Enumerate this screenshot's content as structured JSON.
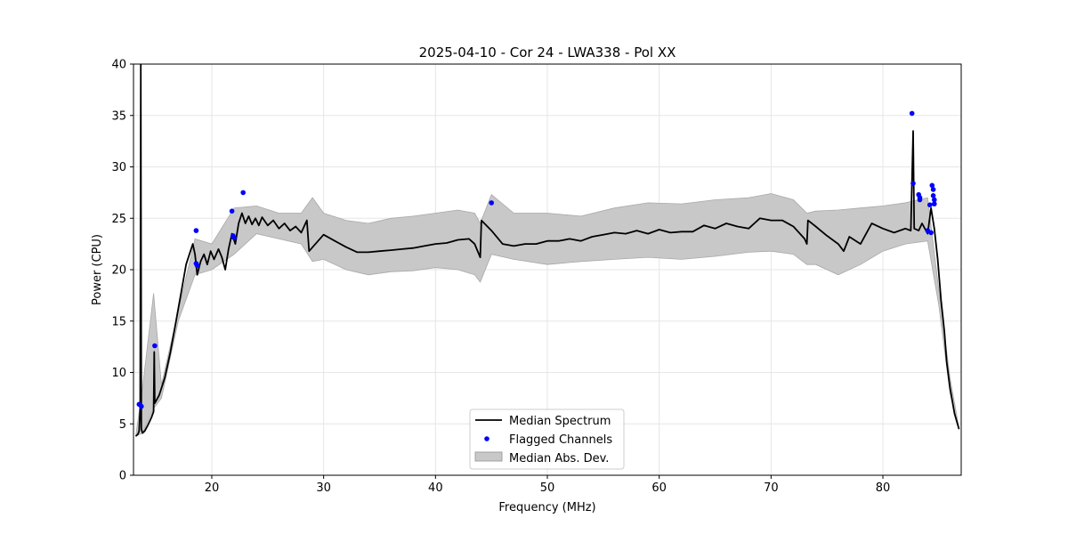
{
  "chart_data": {
    "type": "line",
    "title": "2025-04-10 - Cor 24 - LWA338 - Pol XX",
    "xlabel": "Frequency (MHz)",
    "ylabel": "Power (CPU)",
    "xlim": [
      13.0,
      87.0
    ],
    "ylim": [
      0,
      40
    ],
    "x_ticks": [
      20,
      30,
      40,
      50,
      60,
      70,
      80
    ],
    "x_tick_labels": [
      "20",
      "30",
      "40",
      "50",
      "60",
      "70",
      "80"
    ],
    "y_ticks": [
      0,
      5,
      10,
      15,
      20,
      25,
      30,
      35,
      40
    ],
    "y_tick_labels": [
      "0",
      "5",
      "10",
      "15",
      "20",
      "25",
      "30",
      "35",
      "40"
    ],
    "grid": true,
    "legend": {
      "placement": "lower-center",
      "entries": [
        "Median Spectrum",
        "Flagged Channels",
        "Median Abs. Dev."
      ]
    },
    "series": [
      {
        "name": "Median Spectrum",
        "kind": "line",
        "color": "#000000",
        "points": [
          [
            13.2,
            3.8
          ],
          [
            13.4,
            4.0
          ],
          [
            13.5,
            4.3
          ],
          [
            13.6,
            6.5
          ],
          [
            13.65,
            40.0
          ],
          [
            13.7,
            4.5
          ],
          [
            13.8,
            4.1
          ],
          [
            14.0,
            4.3
          ],
          [
            14.3,
            4.9
          ],
          [
            14.6,
            5.6
          ],
          [
            14.8,
            6.2
          ],
          [
            14.85,
            12.0
          ],
          [
            14.9,
            7.0
          ],
          [
            15.3,
            7.8
          ],
          [
            15.8,
            9.5
          ],
          [
            16.3,
            12.0
          ],
          [
            16.8,
            15.0
          ],
          [
            17.3,
            18.0
          ],
          [
            17.7,
            20.5
          ],
          [
            18.0,
            21.5
          ],
          [
            18.3,
            22.5
          ],
          [
            18.5,
            21.5
          ],
          [
            18.7,
            19.5
          ],
          [
            19.0,
            20.8
          ],
          [
            19.3,
            21.5
          ],
          [
            19.6,
            20.5
          ],
          [
            19.9,
            21.8
          ],
          [
            20.2,
            21.0
          ],
          [
            20.6,
            22.0
          ],
          [
            20.9,
            21.2
          ],
          [
            21.2,
            20.0
          ],
          [
            21.5,
            22.0
          ],
          [
            21.8,
            23.5
          ],
          [
            22.1,
            22.5
          ],
          [
            22.4,
            24.5
          ],
          [
            22.7,
            25.5
          ],
          [
            23.0,
            24.5
          ],
          [
            23.3,
            25.2
          ],
          [
            23.6,
            24.4
          ],
          [
            23.9,
            25.0
          ],
          [
            24.2,
            24.3
          ],
          [
            24.5,
            25.1
          ],
          [
            25.0,
            24.3
          ],
          [
            25.5,
            24.8
          ],
          [
            26.0,
            24.0
          ],
          [
            26.5,
            24.5
          ],
          [
            27.0,
            23.8
          ],
          [
            27.5,
            24.2
          ],
          [
            28.0,
            23.6
          ],
          [
            28.5,
            24.8
          ],
          [
            28.7,
            21.8
          ],
          [
            29.5,
            22.8
          ],
          [
            30.0,
            23.4
          ],
          [
            31.0,
            22.8
          ],
          [
            32.0,
            22.2
          ],
          [
            33.0,
            21.7
          ],
          [
            34.0,
            21.7
          ],
          [
            35.0,
            21.8
          ],
          [
            36.0,
            21.9
          ],
          [
            37.0,
            22.0
          ],
          [
            38.0,
            22.1
          ],
          [
            39.0,
            22.3
          ],
          [
            40.0,
            22.5
          ],
          [
            41.0,
            22.6
          ],
          [
            42.0,
            22.9
          ],
          [
            43.0,
            23.0
          ],
          [
            43.5,
            22.5
          ],
          [
            44.0,
            21.2
          ],
          [
            44.1,
            24.8
          ],
          [
            45.0,
            23.8
          ],
          [
            46.0,
            22.5
          ],
          [
            47.0,
            22.3
          ],
          [
            48.0,
            22.5
          ],
          [
            49.0,
            22.5
          ],
          [
            50.0,
            22.8
          ],
          [
            51.0,
            22.8
          ],
          [
            52.0,
            23.0
          ],
          [
            53.0,
            22.8
          ],
          [
            54.0,
            23.2
          ],
          [
            55.0,
            23.4
          ],
          [
            56.0,
            23.6
          ],
          [
            57.0,
            23.5
          ],
          [
            58.0,
            23.8
          ],
          [
            59.0,
            23.5
          ],
          [
            60.0,
            23.9
          ],
          [
            61.0,
            23.6
          ],
          [
            62.0,
            23.7
          ],
          [
            63.0,
            23.7
          ],
          [
            64.0,
            24.3
          ],
          [
            65.0,
            24.0
          ],
          [
            66.0,
            24.5
          ],
          [
            67.0,
            24.2
          ],
          [
            68.0,
            24.0
          ],
          [
            69.0,
            25.0
          ],
          [
            70.0,
            24.8
          ],
          [
            71.0,
            24.8
          ],
          [
            72.0,
            24.2
          ],
          [
            73.0,
            23.0
          ],
          [
            73.2,
            22.5
          ],
          [
            73.3,
            24.8
          ],
          [
            74.0,
            24.2
          ],
          [
            75.0,
            23.3
          ],
          [
            76.0,
            22.5
          ],
          [
            76.5,
            21.8
          ],
          [
            77.0,
            23.2
          ],
          [
            78.0,
            22.5
          ],
          [
            79.0,
            24.5
          ],
          [
            80.0,
            24.0
          ],
          [
            81.0,
            23.6
          ],
          [
            82.0,
            24.0
          ],
          [
            82.5,
            23.8
          ],
          [
            82.7,
            33.5
          ],
          [
            82.8,
            24.0
          ],
          [
            83.2,
            23.8
          ],
          [
            83.5,
            24.5
          ],
          [
            84.0,
            23.5
          ],
          [
            84.3,
            26.0
          ],
          [
            84.6,
            24.0
          ],
          [
            84.9,
            21.0
          ],
          [
            85.2,
            17.0
          ],
          [
            85.5,
            14.0
          ],
          [
            85.7,
            11.0
          ],
          [
            86.0,
            8.5
          ],
          [
            86.4,
            6.0
          ],
          [
            86.8,
            4.5
          ]
        ]
      },
      {
        "name": "Flagged Channels",
        "kind": "scatter",
        "color": "#0000ff",
        "points": [
          [
            13.5,
            6.9
          ],
          [
            13.7,
            6.7
          ],
          [
            14.9,
            12.6
          ],
          [
            18.6,
            23.8
          ],
          [
            18.6,
            20.6
          ],
          [
            18.7,
            20.4
          ],
          [
            21.8,
            25.7
          ],
          [
            21.9,
            23.3
          ],
          [
            22.0,
            23.1
          ],
          [
            22.8,
            27.5
          ],
          [
            45.0,
            26.5
          ],
          [
            82.6,
            35.2
          ],
          [
            82.7,
            28.4
          ],
          [
            83.2,
            27.3
          ],
          [
            83.3,
            27.0
          ],
          [
            83.3,
            26.8
          ],
          [
            84.2,
            26.3
          ],
          [
            84.4,
            28.2
          ],
          [
            84.5,
            27.8
          ],
          [
            84.5,
            27.2
          ],
          [
            84.6,
            26.8
          ],
          [
            84.6,
            26.4
          ],
          [
            84.0,
            23.8
          ],
          [
            84.3,
            23.6
          ]
        ]
      },
      {
        "name": "Median Abs. Dev.",
        "kind": "band",
        "color": "#c8c8c8",
        "x": [
          13.2,
          13.8,
          14.8,
          15.5,
          17.0,
          18.5,
          20.0,
          22.0,
          24.0,
          26.0,
          28.0,
          29.0,
          30.0,
          32.0,
          34.0,
          36.0,
          38.0,
          40.0,
          42.0,
          43.5,
          44.0,
          45.0,
          47.0,
          50.0,
          53.0,
          56.0,
          59.0,
          62.0,
          65.0,
          68.0,
          70.0,
          72.0,
          73.2,
          74.0,
          76.0,
          78.0,
          80.0,
          82.0,
          84.0,
          85.0,
          86.0,
          86.8
        ],
        "lower": [
          3.8,
          4.1,
          6.5,
          7.5,
          15.0,
          19.5,
          20.0,
          21.5,
          23.5,
          23.0,
          22.5,
          20.8,
          21.0,
          20.0,
          19.5,
          19.8,
          19.9,
          20.2,
          20.0,
          19.5,
          18.8,
          21.5,
          21.0,
          20.5,
          20.8,
          21.0,
          21.2,
          21.0,
          21.3,
          21.7,
          21.8,
          21.5,
          20.5,
          20.5,
          19.5,
          20.5,
          21.8,
          22.5,
          22.8,
          16.5,
          8.0,
          4.4
        ],
        "upper": [
          3.8,
          8.5,
          17.7,
          8.8,
          16.0,
          23.0,
          22.5,
          26.0,
          26.2,
          25.5,
          25.5,
          27.0,
          25.5,
          24.8,
          24.5,
          25.0,
          25.2,
          25.5,
          25.8,
          25.5,
          24.5,
          27.3,
          25.5,
          25.5,
          25.2,
          26.0,
          26.5,
          26.4,
          26.8,
          27.0,
          27.4,
          26.8,
          25.5,
          25.7,
          25.8,
          26.0,
          26.2,
          26.5,
          27.0,
          18.0,
          9.5,
          4.6
        ]
      }
    ]
  }
}
